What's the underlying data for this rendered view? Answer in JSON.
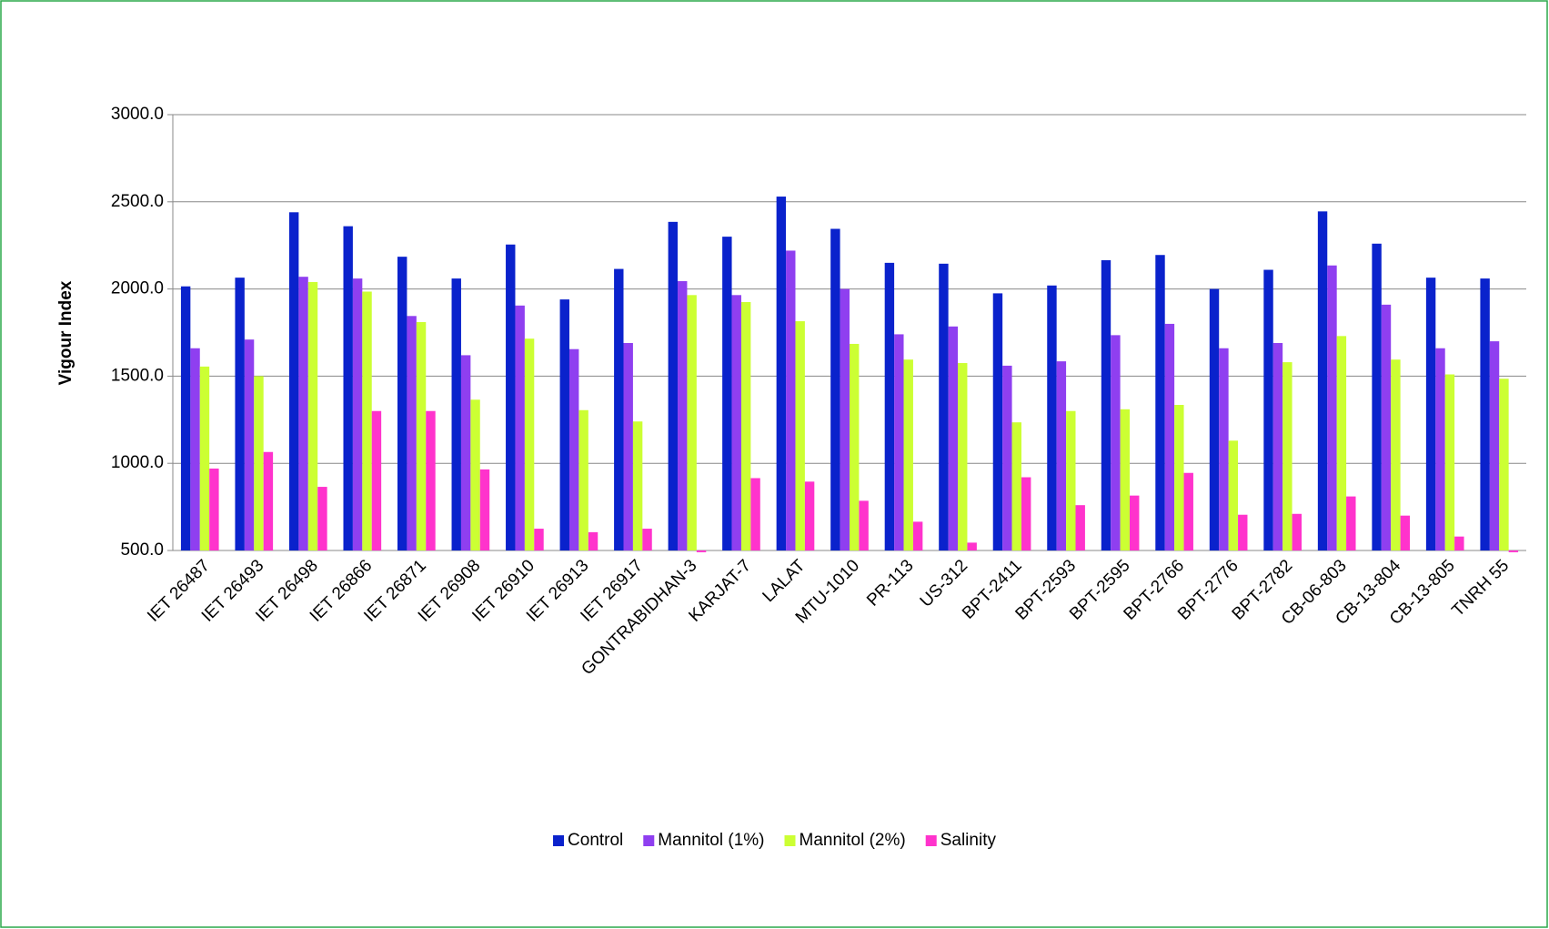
{
  "chart_data": {
    "type": "bar",
    "y_label": "Vigour Index",
    "categories": [
      "IET 26487",
      "IET 26493",
      "IET 26498",
      "IET 26866",
      "IET 26871",
      "IET 26908",
      "IET 26910",
      "IET 26913",
      "IET 26917",
      "GONTRABIDHAN-3",
      "KARJAT-7",
      "LALAT",
      "MTU-1010",
      "PR-113",
      "US-312",
      "BPT-2411",
      "BPT-2593",
      "BPT-2595",
      "BPT-2766",
      "BPT-2776",
      "BPT-2782",
      "CB-06-803",
      "CB-13-804",
      "CB-13-805",
      "TNRH 55"
    ],
    "series": [
      {
        "name": "Control",
        "color": "#0a22cc",
        "values": [
          2015,
          2065,
          2440,
          2360,
          2185,
          2060,
          2255,
          1940,
          2115,
          2385,
          2300,
          2530,
          2345,
          2150,
          2145,
          1975,
          2020,
          2165,
          2195,
          2000,
          2110,
          2445,
          2260,
          2065,
          2060
        ]
      },
      {
        "name": "Mannitol (1%)",
        "color": "#8f3ff0",
        "values": [
          1660,
          1710,
          2070,
          2060,
          1845,
          1620,
          1905,
          1655,
          1690,
          2045,
          1965,
          2220,
          2000,
          1740,
          1785,
          1560,
          1585,
          1735,
          1800,
          1660,
          1690,
          2135,
          1910,
          1660,
          1700
        ]
      },
      {
        "name": "Mannitol (2%)",
        "color": "#ccff33",
        "values": [
          1555,
          1500,
          2040,
          1985,
          1810,
          1365,
          1715,
          1305,
          1240,
          1965,
          1925,
          1815,
          1685,
          1595,
          1575,
          1235,
          1300,
          1310,
          1335,
          1130,
          1580,
          1730,
          1595,
          1510,
          1485
        ]
      },
      {
        "name": "Salinity",
        "color": "#ff33cc",
        "values": [
          970,
          1065,
          865,
          1300,
          1300,
          965,
          625,
          605,
          625,
          490,
          915,
          895,
          785,
          665,
          545,
          920,
          760,
          815,
          945,
          705,
          710,
          810,
          700,
          580,
          490
        ]
      }
    ],
    "ylim": [
      500,
      3000
    ],
    "yticks": [
      {
        "value": 500,
        "label": "500.0"
      },
      {
        "value": 1000,
        "label": "1000.0"
      },
      {
        "value": 1500,
        "label": "1500.0"
      },
      {
        "value": 2000,
        "label": "2000.0"
      },
      {
        "value": 2500,
        "label": "2500.0"
      },
      {
        "value": 3000,
        "label": "3000.0"
      }
    ],
    "grid": true,
    "legend": "bottom"
  }
}
